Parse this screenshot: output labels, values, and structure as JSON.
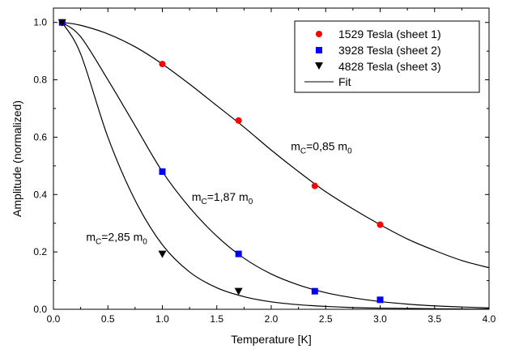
{
  "chart_data": {
    "type": "scatter",
    "xlabel": "Temperature [K]",
    "ylabel": "Amplitude (normalized)",
    "xlim": [
      0.0,
      4.0
    ],
    "ylim": [
      0.0,
      1.05
    ],
    "x_ticks": [
      "0.0",
      "0.5",
      "1.0",
      "1.5",
      "2.0",
      "2.5",
      "3.0",
      "3.5",
      "4.0"
    ],
    "y_ticks": [
      "0.0",
      "0.2",
      "0.4",
      "0.6",
      "0.8",
      "1.0"
    ],
    "grid": false,
    "legend_position": "top-right",
    "series": [
      {
        "name": "1529 Tesla (sheet 1)",
        "marker": "circle",
        "color": "#ff0000",
        "x": [
          0.08,
          1.0,
          1.7,
          2.4,
          3.0
        ],
        "y": [
          1.0,
          0.855,
          0.658,
          0.43,
          0.295
        ]
      },
      {
        "name": "3928 Tesla (sheet 2)",
        "marker": "square",
        "color": "#0000ff",
        "x": [
          0.08,
          1.0,
          1.7,
          2.4,
          3.0
        ],
        "y": [
          1.0,
          0.48,
          0.193,
          0.063,
          0.033
        ]
      },
      {
        "name": "4828 Tesla (sheet 3)",
        "marker": "triangle-down",
        "color": "#000000",
        "x": [
          0.08,
          1.0,
          1.7
        ],
        "y": [
          1.0,
          0.193,
          0.063
        ]
      }
    ],
    "fit": {
      "name": "Fit",
      "color": "#000000",
      "curves": [
        {
          "x": [
            0.08,
            0.25,
            0.5,
            0.75,
            1.0,
            1.25,
            1.5,
            1.75,
            2.0,
            2.25,
            2.5,
            2.75,
            3.0,
            3.25,
            3.5,
            3.75,
            4.0
          ],
          "y": [
            1.0,
            0.99,
            0.96,
            0.915,
            0.855,
            0.785,
            0.71,
            0.635,
            0.555,
            0.48,
            0.41,
            0.35,
            0.295,
            0.245,
            0.205,
            0.17,
            0.145
          ]
        },
        {
          "x": [
            0.08,
            0.25,
            0.5,
            0.75,
            1.0,
            1.25,
            1.5,
            1.75,
            2.0,
            2.25,
            2.5,
            2.75,
            3.0,
            3.25,
            3.5,
            3.75,
            4.0
          ],
          "y": [
            1.0,
            0.95,
            0.8,
            0.64,
            0.48,
            0.355,
            0.255,
            0.178,
            0.123,
            0.085,
            0.058,
            0.04,
            0.027,
            0.018,
            0.012,
            0.008,
            0.005
          ]
        },
        {
          "x": [
            0.08,
            0.25,
            0.5,
            0.75,
            1.0,
            1.25,
            1.5,
            1.75,
            2.0,
            2.25,
            2.5,
            2.75,
            3.0,
            3.25,
            3.5,
            3.75,
            4.0
          ],
          "y": [
            1.0,
            0.89,
            0.6,
            0.38,
            0.225,
            0.13,
            0.075,
            0.044,
            0.026,
            0.016,
            0.01,
            0.006,
            0.004,
            0.003,
            0.002,
            0.001,
            0.001
          ]
        }
      ]
    },
    "annotations": [
      {
        "base": "m",
        "sub1": "C",
        "text": "=0,85 m",
        "sub2": "0",
        "x": 2.18,
        "y": 0.555
      },
      {
        "base": "m",
        "sub1": "C",
        "text": "=1,87 m",
        "sub2": "0",
        "x": 1.27,
        "y": 0.378
      },
      {
        "base": "m",
        "sub1": "C",
        "text": "=2,85 m",
        "sub2": "0",
        "x": 0.3,
        "y": 0.238
      }
    ]
  }
}
